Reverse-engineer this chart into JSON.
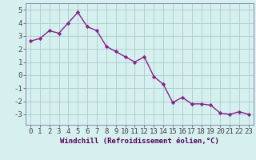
{
  "x": [
    0,
    1,
    2,
    3,
    4,
    5,
    6,
    7,
    8,
    9,
    10,
    11,
    12,
    13,
    14,
    15,
    16,
    17,
    18,
    19,
    20,
    21,
    22,
    23
  ],
  "y": [
    2.6,
    2.8,
    3.4,
    3.2,
    4.0,
    4.8,
    3.7,
    3.4,
    2.2,
    1.8,
    1.4,
    1.0,
    1.4,
    -0.1,
    -0.7,
    -2.1,
    -1.7,
    -2.2,
    -2.2,
    -2.3,
    -2.9,
    -3.0,
    -2.8,
    -3.0
  ],
  "line_color": "#882288",
  "marker": "D",
  "marker_size": 2.2,
  "linewidth": 1.0,
  "bg_color": "#d6f0f0",
  "grid_color": "#aacccc",
  "xlabel": "Windchill (Refroidissement éolien,°C)",
  "xlabel_fontsize": 6.5,
  "tick_fontsize": 6.5,
  "ylim": [
    -3.8,
    5.5
  ],
  "xlim": [
    -0.5,
    23.5
  ],
  "yticks": [
    -3,
    -2,
    -1,
    0,
    1,
    2,
    3,
    4,
    5
  ],
  "xticks": [
    0,
    1,
    2,
    3,
    4,
    5,
    6,
    7,
    8,
    9,
    10,
    11,
    12,
    13,
    14,
    15,
    16,
    17,
    18,
    19,
    20,
    21,
    22,
    23
  ],
  "spine_color": "#8888aa",
  "tick_color": "#444444",
  "xlabel_color": "#550055"
}
